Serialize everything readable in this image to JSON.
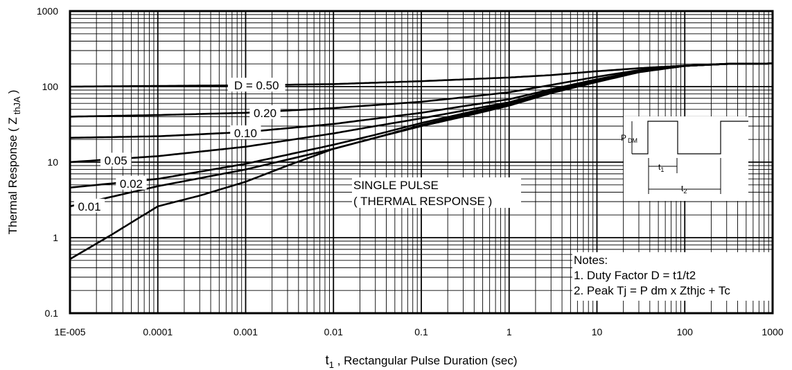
{
  "chart_data": {
    "type": "line",
    "x_scale": "log",
    "y_scale": "log",
    "xlim": [
      1e-05,
      1000
    ],
    "ylim": [
      0.1,
      1000
    ],
    "grid": true,
    "xlabel_t": "t",
    "xlabel_sub": "1",
    "xlabel_rest": " , Rectangular Pulse Duration (sec)",
    "ylabel_main": "Thermal Response ( Z",
    "ylabel_sub": "thJA",
    "ylabel_close": ")",
    "x_ticks": [
      {
        "value": 1e-05,
        "label": "1E-005"
      },
      {
        "value": 0.0001,
        "label": "0.0001"
      },
      {
        "value": 0.001,
        "label": "0.001"
      },
      {
        "value": 0.01,
        "label": "0.01"
      },
      {
        "value": 0.1,
        "label": "0.1"
      },
      {
        "value": 1,
        "label": "1"
      },
      {
        "value": 10,
        "label": "10"
      },
      {
        "value": 100,
        "label": "100"
      },
      {
        "value": 1000,
        "label": "1000"
      }
    ],
    "y_ticks": [
      {
        "value": 0.1,
        "label": "0.1"
      },
      {
        "value": 1,
        "label": "1"
      },
      {
        "value": 10,
        "label": "10"
      },
      {
        "value": 100,
        "label": "100"
      },
      {
        "value": 1000,
        "label": "1000"
      }
    ],
    "series": [
      {
        "name": "D = 0.50",
        "label_x": 0.0008,
        "points": [
          [
            1e-05,
            100
          ],
          [
            0.0001,
            102
          ],
          [
            0.001,
            104
          ],
          [
            0.01,
            108
          ],
          [
            0.1,
            118
          ],
          [
            1,
            132
          ],
          [
            3,
            142
          ],
          [
            10,
            160
          ],
          [
            30,
            175
          ],
          [
            100,
            190
          ],
          [
            300,
            200
          ],
          [
            1000,
            202
          ]
        ]
      },
      {
        "name": "0.20",
        "label_x": 0.001,
        "points": [
          [
            1e-05,
            40
          ],
          [
            0.0001,
            42
          ],
          [
            0.001,
            45
          ],
          [
            0.01,
            52
          ],
          [
            0.1,
            63
          ],
          [
            0.3,
            72
          ],
          [
            1,
            84
          ],
          [
            3,
            105
          ],
          [
            10,
            135
          ],
          [
            30,
            165
          ],
          [
            100,
            190
          ],
          [
            300,
            200
          ],
          [
            1000,
            202
          ]
        ]
      },
      {
        "name": "0.10",
        "label_x": 0.0006,
        "points": [
          [
            1e-05,
            21
          ],
          [
            0.0001,
            22
          ],
          [
            0.001,
            25
          ],
          [
            0.01,
            32
          ],
          [
            0.1,
            45
          ],
          [
            0.3,
            55
          ],
          [
            1,
            68
          ],
          [
            3,
            92
          ],
          [
            10,
            125
          ],
          [
            30,
            160
          ],
          [
            100,
            188
          ],
          [
            300,
            200
          ],
          [
            1000,
            202
          ]
        ]
      },
      {
        "name": "0.05",
        "label_x": 2e-05,
        "points": [
          [
            1e-05,
            10
          ],
          [
            0.0001,
            12
          ],
          [
            0.001,
            16
          ],
          [
            0.01,
            24
          ],
          [
            0.03,
            30
          ],
          [
            0.1,
            38
          ],
          [
            0.3,
            48
          ],
          [
            1,
            62
          ],
          [
            3,
            88
          ],
          [
            10,
            122
          ],
          [
            30,
            158
          ],
          [
            100,
            188
          ],
          [
            300,
            200
          ],
          [
            1000,
            202
          ]
        ]
      },
      {
        "name": "0.02",
        "label_x": 3e-05,
        "points": [
          [
            1e-05,
            4.6
          ],
          [
            0.0001,
            6
          ],
          [
            0.001,
            9.5
          ],
          [
            0.01,
            17
          ],
          [
            0.03,
            23
          ],
          [
            0.1,
            33
          ],
          [
            0.3,
            44
          ],
          [
            1,
            60
          ],
          [
            3,
            86
          ],
          [
            10,
            120
          ],
          [
            30,
            157
          ],
          [
            100,
            188
          ],
          [
            300,
            200
          ],
          [
            1000,
            202
          ]
        ]
      },
      {
        "name": "0.01",
        "label_x": 1e-05,
        "points": [
          [
            1e-05,
            2.6
          ],
          [
            0.0001,
            4.8
          ],
          [
            0.001,
            8
          ],
          [
            0.01,
            15
          ],
          [
            0.03,
            21
          ],
          [
            0.1,
            31
          ],
          [
            0.3,
            42
          ],
          [
            1,
            58
          ],
          [
            3,
            84
          ],
          [
            10,
            118
          ],
          [
            30,
            156
          ],
          [
            100,
            188
          ],
          [
            300,
            200
          ],
          [
            1000,
            202
          ]
        ]
      },
      {
        "name": "",
        "points": [
          [
            1e-05,
            0.52
          ],
          [
            3e-05,
            1.1
          ],
          [
            0.0001,
            2.6
          ],
          [
            0.0003,
            3.6
          ],
          [
            0.001,
            5.5
          ],
          [
            0.003,
            9
          ],
          [
            0.01,
            15
          ],
          [
            0.03,
            21
          ],
          [
            0.1,
            30
          ],
          [
            0.3,
            40
          ],
          [
            1,
            56
          ],
          [
            3,
            82
          ],
          [
            10,
            115
          ],
          [
            30,
            155
          ],
          [
            100,
            188
          ],
          [
            300,
            200
          ],
          [
            1000,
            202
          ]
        ]
      }
    ],
    "annotations": {
      "single_pulse_line1": "SINGLE PULSE",
      "single_pulse_line2": "( THERMAL RESPONSE )",
      "notes_title": "Notes:",
      "note1": "1. Duty Factor D = t1/t2",
      "note2": "2. Peak Tj = P dm x Zthjc + Tc",
      "inset_p": "P",
      "inset_p_sub": "DM",
      "inset_t1": "t",
      "inset_t1_sub": "1",
      "inset_t2": "t",
      "inset_t2_sub": "2"
    },
    "colors": {
      "line": "#000000",
      "grid": "#000000",
      "background": "#ffffff"
    }
  }
}
